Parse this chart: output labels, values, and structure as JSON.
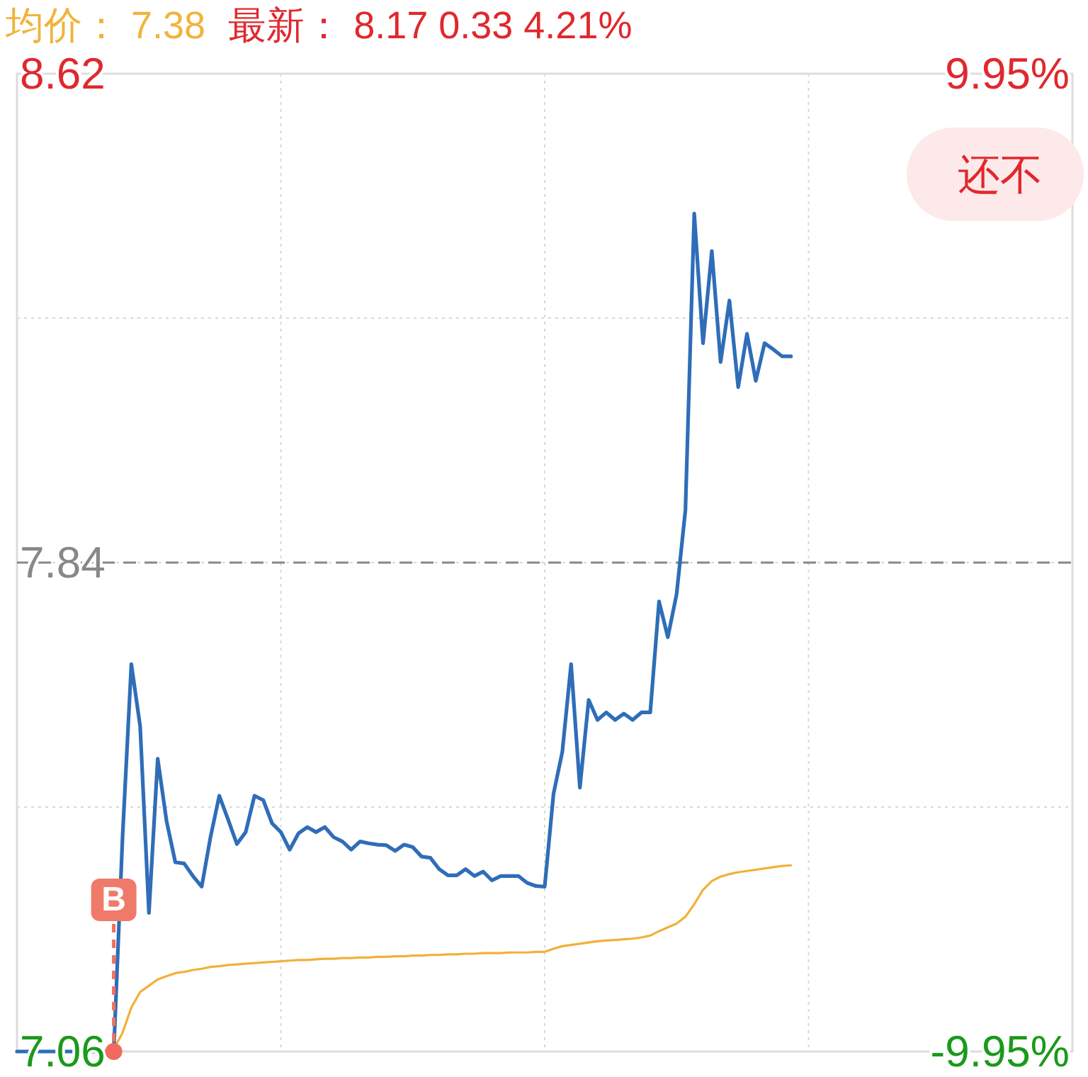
{
  "chart_data": {
    "type": "line",
    "annotations": [
      "均价： 7.38",
      "最新： 8.17  0.33  4.21%",
      "还不",
      {
        "text": "B",
        "y": 7.06
      }
    ],
    "categories": [
      null,
      null,
      null,
      null,
      null,
      null,
      null,
      null,
      null,
      null,
      null,
      null,
      null,
      null,
      null,
      null,
      null,
      null,
      null,
      null,
      null,
      null,
      null,
      null,
      null,
      null,
      null,
      null,
      null,
      null,
      null,
      null,
      null,
      null,
      null,
      null,
      null,
      null,
      null,
      null,
      null,
      null,
      null,
      null,
      null,
      null,
      null,
      null,
      null,
      null,
      null,
      null,
      null,
      null,
      null,
      null,
      null,
      null,
      null,
      null,
      null,
      null,
      null,
      null,
      null,
      null,
      null,
      null,
      null,
      null,
      null,
      null,
      null,
      null,
      null,
      null,
      null,
      null,
      null,
      null,
      null,
      null,
      null,
      null,
      null,
      null,
      null,
      null,
      null,
      null,
      null,
      null,
      null,
      null,
      null,
      null,
      null,
      null,
      null,
      null,
      null,
      null,
      null,
      null,
      null,
      null,
      null,
      null,
      null,
      null,
      null,
      null,
      null,
      null,
      null,
      null,
      null,
      null,
      null,
      null,
      null
    ],
    "series": [
      {
        "color": "#2f6db8",
        "values": [
          7.06,
          7.06,
          7.06,
          7.06,
          7.06,
          7.06,
          7.06,
          7.06,
          7.06,
          7.06,
          7.06,
          7.06,
          7.402,
          7.678,
          7.579,
          7.281,
          7.527,
          7.428,
          7.362,
          7.36,
          7.34,
          7.323,
          7.402,
          7.468,
          7.43,
          7.391,
          7.41,
          7.468,
          7.461,
          7.424,
          7.41,
          7.382,
          7.408,
          7.418,
          7.41,
          7.418,
          7.402,
          7.395,
          7.382,
          7.395,
          7.392,
          7.39,
          7.389,
          7.38,
          7.39,
          7.386,
          7.371,
          7.369,
          7.351,
          7.341,
          7.341,
          7.351,
          7.34,
          7.347,
          7.333,
          7.34,
          7.34,
          7.34,
          7.329,
          7.324,
          7.323,
          7.471,
          7.538,
          7.678,
          7.481,
          7.621,
          7.589,
          7.601,
          7.589,
          7.599,
          7.589,
          7.601,
          7.601,
          7.778,
          7.721,
          7.79,
          7.924,
          8.397,
          8.19,
          8.337,
          8.16,
          8.258,
          8.12,
          8.205,
          8.13,
          8.19,
          8.18,
          8.169,
          8.169,
          null,
          null,
          null,
          null,
          null,
          null,
          null,
          null,
          null,
          null,
          null,
          null,
          null,
          null,
          null,
          null,
          null,
          null,
          null,
          null,
          null,
          null,
          null,
          null,
          null,
          null,
          null,
          null,
          null,
          null,
          null,
          null
        ]
      },
      {
        "color": "#f2b03a",
        "values": [
          null,
          null,
          null,
          null,
          null,
          null,
          null,
          null,
          null,
          null,
          null,
          7.064,
          7.09,
          7.13,
          7.155,
          7.165,
          7.175,
          7.18,
          7.185,
          7.187,
          7.19,
          7.192,
          7.195,
          7.196,
          7.198,
          7.199,
          7.2,
          7.201,
          7.202,
          7.203,
          7.204,
          7.205,
          7.206,
          7.206,
          7.207,
          7.208,
          7.208,
          7.209,
          7.209,
          7.21,
          7.21,
          7.211,
          7.211,
          7.212,
          7.212,
          7.213,
          7.213,
          7.214,
          7.214,
          7.215,
          7.215,
          7.216,
          7.216,
          7.217,
          7.217,
          7.217,
          7.218,
          7.218,
          7.218,
          7.219,
          7.219,
          7.224,
          7.228,
          7.23,
          7.232,
          7.234,
          7.236,
          7.237,
          7.238,
          7.239,
          7.24,
          7.242,
          7.245,
          7.252,
          7.258,
          7.264,
          7.275,
          7.295,
          7.318,
          7.332,
          7.339,
          7.343,
          7.346,
          7.348,
          7.35,
          7.352,
          7.354,
          7.356,
          7.357,
          null,
          null,
          null,
          null,
          null,
          null,
          null,
          null,
          null,
          null,
          null,
          null,
          null,
          null,
          null,
          null,
          null,
          null,
          null,
          null,
          null,
          null,
          null,
          null,
          null,
          null,
          null,
          null,
          null,
          null,
          null,
          null
        ]
      }
    ],
    "ylim": [
      7.06,
      8.62
    ],
    "yticks": [
      8.62,
      {
        "value": 8.23,
        "label": null
      },
      7.84,
      {
        "value": 7.45,
        "label": null
      },
      7.06
    ],
    "y2lim": [
      -9.95,
      9.95
    ],
    "y2ticks": [
      {
        "value": 9.95,
        "label": "9.95%"
      },
      {
        "value": -9.95,
        "label": "-9.95%"
      }
    ],
    "ref_lines": [
      {
        "axis": "y",
        "value": 7.84,
        "color": "#888888",
        "line_style": "dashed"
      }
    ],
    "grid": true,
    "tick_labels": "y"
  }
}
